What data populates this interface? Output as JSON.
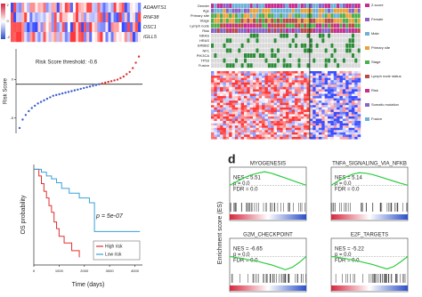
{
  "top_left_heatmap": {
    "genes": [
      "ADAMTS1",
      "RNF38",
      "DSC1",
      "IGLL5"
    ],
    "scale_labels": [
      "2",
      "0",
      "-2"
    ]
  },
  "top_right_heatmap": {
    "rows": [
      "Gender",
      "Age",
      "Primary site",
      "Stage",
      "Lymph node",
      "Risk",
      "NRAS",
      "HRAS",
      "ERBB2",
      "NF1",
      "PIK3CA",
      "TP53",
      "Fusion"
    ],
    "legend": [
      "Z-score",
      "Female",
      "Male",
      "Primary site",
      "Stage",
      "Lymph node status",
      "Risk",
      "Somatic mutation",
      "Fusion"
    ]
  },
  "panel_label": "d",
  "gsea_ylabel": "Enrichment score (ES)",
  "chart_data": [
    {
      "type": "riskline",
      "ylabel": "Risk Score",
      "annotation": "Risk Score threshold: -0.6",
      "threshold": -0.6,
      "ylim": [
        -7,
        4
      ],
      "yticks": [
        0,
        -5
      ],
      "colors": {
        "low": "#3a5fcd",
        "high": "#e03030"
      },
      "values": [
        -6.3,
        -5.2,
        -4.6,
        -4.1,
        -3.7,
        -3.4,
        -3.1,
        -2.9,
        -2.7,
        -2.5,
        -2.3,
        -2.1,
        -2.0,
        -1.9,
        -1.8,
        -1.7,
        -1.6,
        -1.5,
        -1.4,
        -1.3,
        -1.2,
        -1.1,
        -1.0,
        -0.9,
        -0.8,
        -0.7,
        -0.6,
        -0.5,
        -0.4,
        -0.3,
        -0.2,
        -0.1,
        0.0,
        0.2,
        0.4,
        0.7,
        1.0,
        1.5,
        2.2,
        3.0
      ]
    },
    {
      "type": "km",
      "xlabel": "Time (days)",
      "ylabel": "OS probability",
      "annotation": "p = 5e-07",
      "xlim": [
        0,
        4300
      ],
      "xticks": [
        0,
        1000,
        2000,
        3000,
        4000
      ],
      "ylim": [
        0,
        1.05
      ],
      "legend": "bottom-right",
      "series": [
        {
          "name": "High risk",
          "color": "#e03030",
          "x": [
            0,
            200,
            300,
            400,
            500,
            600,
            700,
            800,
            900,
            1000,
            1200,
            1500,
            1800
          ],
          "values": [
            1,
            0.93,
            0.85,
            0.77,
            0.7,
            0.62,
            0.55,
            0.45,
            0.38,
            0.3,
            0.23,
            0.15,
            0.08
          ]
        },
        {
          "name": "Low risk",
          "color": "#3aa0d8",
          "x": [
            0,
            300,
            500,
            700,
            900,
            1100,
            1400,
            1800,
            2200,
            2400,
            4200
          ],
          "values": [
            1,
            0.97,
            0.93,
            0.9,
            0.86,
            0.8,
            0.75,
            0.7,
            0.65,
            0.35,
            0.35
          ]
        }
      ]
    },
    {
      "type": "gsea",
      "title": "MYOGENESIS",
      "nes": "NES = 5.51",
      "p": "p = 0.0",
      "fdr": "FDR = 0.0",
      "color": "#2ecc40",
      "ylim": [
        -0.65,
        0.75
      ],
      "values": [
        0,
        0.15,
        0.3,
        0.42,
        0.5,
        0.56,
        0.5,
        0.4,
        0.3,
        0.2,
        0.1,
        0
      ]
    },
    {
      "type": "gsea",
      "title": "TNFA_SIGNALING_VIA_NFKB",
      "nes": "NES = 5.14",
      "p": "p = 0.0",
      "fdr": "FDR = 0.0",
      "color": "#2ecc40",
      "ylim": [
        -0.65,
        0.75
      ],
      "values": [
        0,
        0.18,
        0.33,
        0.45,
        0.52,
        0.5,
        0.44,
        0.35,
        0.26,
        0.17,
        0.08,
        0
      ]
    },
    {
      "type": "gsea",
      "title": "G2M_CHECKPOINT",
      "nes": "NES = -6.65",
      "p": "p = 0.0",
      "fdr": "FDR = 0.0",
      "color": "#2ecc40",
      "ylim": [
        -0.65,
        0.75
      ],
      "values": [
        0,
        -0.05,
        -0.1,
        -0.15,
        -0.2,
        -0.28,
        -0.35,
        -0.45,
        -0.55,
        -0.45,
        -0.25,
        0
      ]
    },
    {
      "type": "gsea",
      "title": "E2F_TARGETS",
      "nes": "NES = -5.22",
      "p": "p = 0.0",
      "fdr": "FDR = 0.0",
      "color": "#2ecc40",
      "ylim": [
        -0.65,
        0.75
      ],
      "values": [
        0,
        -0.04,
        -0.09,
        -0.14,
        -0.2,
        -0.27,
        -0.34,
        -0.43,
        -0.52,
        -0.42,
        -0.22,
        0
      ]
    }
  ]
}
